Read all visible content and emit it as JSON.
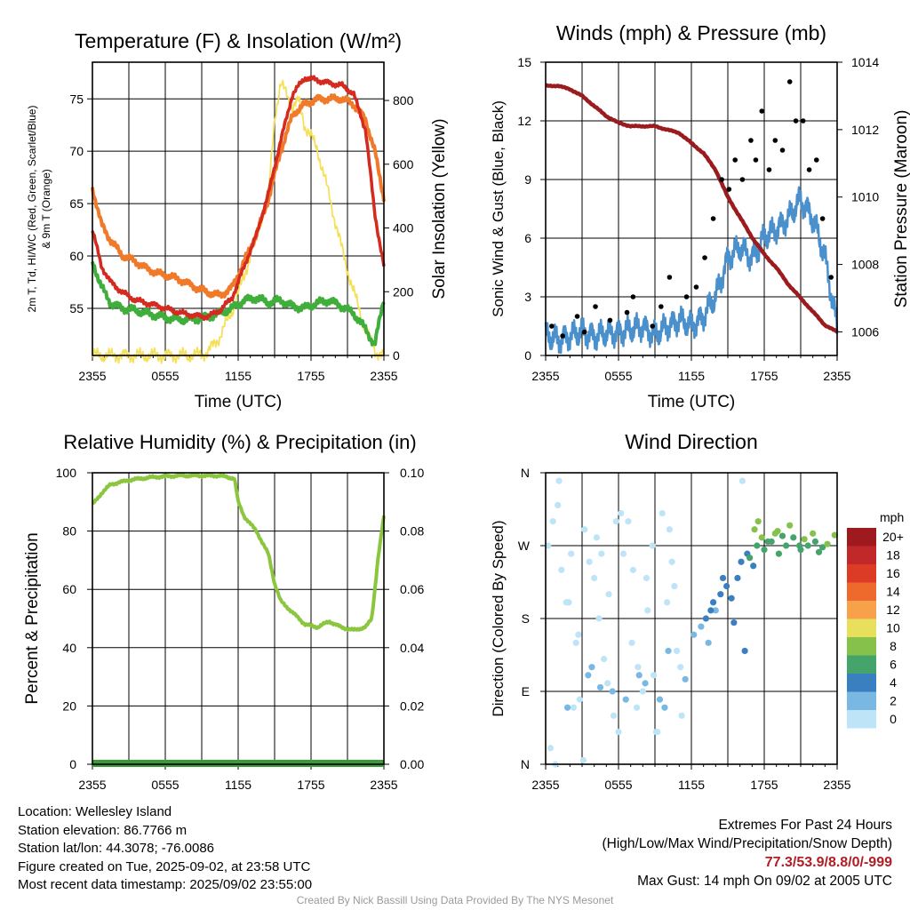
{
  "chart_data": [
    {
      "type": "line",
      "title": "Temperature (F) & Insolation (W/m²)",
      "xlabel": "Time (UTC)",
      "ylabel_lines": [
        "2m T, Td, HI/WC (Red, Green, Scarlet/Blue)",
        "& 9m T (Orange)"
      ],
      "ylabel_right": "Solar Insolation (Yellow)",
      "x_ticks": [
        "2355",
        "0555",
        "1155",
        "1755",
        "2355"
      ],
      "ylim": [
        50.5,
        78.5
      ],
      "y_ticks": [
        55,
        60,
        65,
        70,
        75
      ],
      "ylim_right": [
        0,
        920
      ],
      "y_ticks_right": [
        0,
        200,
        400,
        600,
        800
      ],
      "series": [
        {
          "color": "#d42a20",
          "axis": "left",
          "x": [
            0,
            0.75,
            1.5,
            2.5,
            3.5,
            4.5,
            5.5,
            6.5,
            7.5,
            8.5,
            9.5,
            10.5,
            11.5,
            12.5,
            13.5,
            14.5,
            15.5,
            16.5,
            17.5,
            18.5,
            19.5,
            20.5,
            21.5,
            22.5,
            23.25,
            24
          ],
          "values": [
            62.5,
            59,
            57.5,
            56.5,
            55.8,
            55.5,
            55.2,
            54.8,
            54.5,
            54.3,
            54.2,
            54.8,
            56,
            59,
            62,
            66,
            71,
            75.5,
            77,
            76.8,
            76.5,
            76.3,
            75.5,
            72,
            64,
            59
          ]
        },
        {
          "color": "#b01e24",
          "axis": "left",
          "x": [
            0,
            0.75,
            1.5,
            2.5,
            3.5,
            4.5,
            5.5,
            6.5,
            7.5,
            8.5,
            9.5,
            10.5,
            11.5,
            12.5,
            13.5,
            14.5,
            15.5,
            16.5,
            17.5,
            18.5,
            19.5,
            20.5,
            21.5,
            22.5,
            23.25,
            24
          ],
          "values": [
            62.5,
            59,
            57.5,
            56.5,
            55.8,
            55.5,
            55.2,
            54.8,
            54.5,
            54.3,
            54.2,
            54.8,
            56,
            59,
            62,
            66,
            71,
            75.5,
            77,
            76.8,
            76.5,
            76.3,
            75.5,
            72,
            64,
            59
          ]
        },
        {
          "color": "#f07a2a",
          "axis": "left",
          "x": [
            0,
            0.75,
            1.5,
            2.5,
            3.5,
            4.5,
            5.5,
            6.5,
            7.5,
            8.5,
            9.5,
            10.5,
            11.5,
            12.5,
            13.5,
            14.5,
            15.5,
            16.5,
            17.5,
            18.5,
            19.5,
            20.5,
            21.5,
            22.5,
            23.25,
            24
          ],
          "values": [
            66.5,
            63,
            61.5,
            60,
            59.5,
            58.8,
            58.3,
            58,
            57.6,
            57,
            56.5,
            56.2,
            57,
            59.5,
            62,
            65.5,
            70,
            73.5,
            74.5,
            75,
            75,
            75,
            74.5,
            73,
            70,
            65.5
          ]
        },
        {
          "color": "#3fae3a",
          "axis": "left",
          "x": [
            0,
            0.75,
            1.5,
            2.5,
            3.5,
            4.5,
            5.5,
            6.5,
            7.5,
            8.5,
            9.5,
            10.5,
            11.5,
            12.5,
            13.5,
            14.5,
            15.5,
            16.5,
            17.5,
            18.5,
            19.5,
            20.5,
            21.5,
            22.5,
            23.25,
            24
          ],
          "values": [
            59.5,
            57,
            55.5,
            55,
            54.8,
            54.5,
            54.3,
            54,
            53.9,
            54,
            54.2,
            54.5,
            55,
            55.8,
            56,
            55.5,
            55.8,
            55.2,
            55,
            55.5,
            55.8,
            55.2,
            54.5,
            53,
            51.5,
            56
          ]
        },
        {
          "color": "#f5e05a",
          "axis": "right",
          "x": [
            0,
            8.5,
            9.5,
            10.5,
            11.5,
            12.5,
            13.5,
            14.5,
            15,
            15.5,
            16,
            16.5,
            17,
            17.5,
            18.5,
            19.5,
            20.5,
            21.5,
            22.5,
            23.25,
            24
          ],
          "values": [
            0,
            0,
            10,
            60,
            140,
            250,
            380,
            500,
            750,
            850,
            820,
            780,
            800,
            720,
            650,
            500,
            340,
            200,
            80,
            15,
            0
          ]
        }
      ]
    },
    {
      "type": "line",
      "title": "Winds (mph) & Pressure (mb)",
      "xlabel": "Time (UTC)",
      "ylabel": "Sonic Wind & Gust (Blue, Black)",
      "ylabel_right": "Station Pressure (Maroon)",
      "x_ticks": [
        "2355",
        "0555",
        "1155",
        "1755",
        "2355"
      ],
      "ylim": [
        0,
        15
      ],
      "y_ticks": [
        0,
        3,
        6,
        9,
        12,
        15
      ],
      "ylim_right": [
        1005.3,
        1014
      ],
      "y_ticks_right": [
        1006,
        1008,
        1010,
        1012,
        1014
      ],
      "series": [
        {
          "color": "#4a90cc",
          "axis": "left",
          "x": [
            0,
            1,
            2,
            3,
            4,
            5,
            6,
            7,
            8,
            9,
            10,
            11,
            12,
            13,
            14,
            15,
            16,
            17,
            18,
            19,
            20,
            21,
            22,
            23,
            24
          ],
          "values": [
            1,
            0.8,
            1,
            1.2,
            1,
            1.1,
            1.2,
            1.3,
            1.5,
            1,
            1.5,
            1.8,
            1.5,
            2,
            3,
            5,
            5.5,
            5,
            6,
            6.5,
            7,
            8,
            7,
            5,
            1.5
          ]
        },
        {
          "color": "#9b1c1f",
          "axis": "right",
          "x": [
            0,
            1,
            2,
            3,
            4,
            5,
            6,
            7,
            8,
            9,
            10,
            11,
            12,
            13,
            14,
            15,
            16,
            17,
            18,
            19,
            20,
            21,
            22,
            23,
            24
          ],
          "values": [
            1013.3,
            1013.3,
            1013.2,
            1013,
            1012.7,
            1012.4,
            1012.2,
            1012.1,
            1012.1,
            1012.1,
            1012,
            1011.9,
            1011.6,
            1011.3,
            1010.8,
            1010,
            1009.4,
            1008.8,
            1008.3,
            1007.9,
            1007.4,
            1007,
            1006.6,
            1006.2,
            1006
          ]
        }
      ],
      "gust_points": {
        "color": "#000000",
        "x": [
          0.5,
          1.4,
          2.6,
          3.2,
          4.1,
          5.3,
          6.7,
          7.2,
          8.8,
          9.5,
          10.2,
          11.6,
          12.4,
          13.1,
          13.8,
          14.5,
          15.1,
          15.6,
          16.2,
          16.9,
          17.3,
          17.8,
          18.4,
          18.9,
          19.5,
          20.1,
          20.6,
          21.2,
          21.7,
          22.3,
          22.8,
          23.5
        ],
        "values": [
          1.5,
          1,
          2,
          1.2,
          2.5,
          1.8,
          2.2,
          3,
          1.5,
          2.5,
          4,
          3,
          3.5,
          5,
          7,
          9,
          8.5,
          10,
          9,
          11,
          10,
          12.5,
          9.5,
          11,
          10.5,
          14,
          12,
          12,
          9.5,
          10,
          7,
          4
        ]
      }
    },
    {
      "type": "line",
      "title": "Relative Humidity (%) & Precipitation (in)",
      "ylabel": "Percent & Precipitation",
      "x_ticks": [
        "2355",
        "0555",
        "1155",
        "1755",
        "2355"
      ],
      "ylim": [
        0,
        100
      ],
      "y_ticks": [
        0,
        20,
        40,
        60,
        80,
        100
      ],
      "ylim_right": [
        0,
        0.1
      ],
      "y_ticks_right": [
        "0.00",
        "0.02",
        "0.04",
        "0.06",
        "0.08",
        "0.10"
      ],
      "series": [
        {
          "color": "#8cc63f",
          "axis": "left",
          "x": [
            0,
            0.75,
            1.5,
            3,
            5,
            7,
            9,
            10.5,
            11.7,
            12,
            12.5,
            13.5,
            14.5,
            15,
            15.5,
            16.5,
            17.5,
            18.5,
            19.5,
            20.5,
            21.5,
            22.5,
            23,
            23.5,
            24
          ],
          "values": [
            89,
            93,
            96,
            97.5,
            98.5,
            99,
            99,
            99,
            98,
            90,
            85,
            80,
            72,
            62,
            56,
            52,
            48,
            47,
            49,
            47,
            46,
            47,
            50,
            70,
            85
          ]
        },
        {
          "color": "#3a9a3a",
          "axis": "right",
          "x": [
            0,
            24
          ],
          "values": [
            0,
            0
          ]
        }
      ]
    },
    {
      "type": "scatter",
      "title": "Wind Direction",
      "ylabel": "Direction (Colored By Speed)",
      "x_ticks": [
        "2355",
        "0555",
        "1155",
        "1755",
        "2355"
      ],
      "y_ticks": [
        "N",
        "E",
        "S",
        "W",
        "N"
      ],
      "ylim": [
        0,
        360
      ],
      "legend_title": "mph",
      "legend_labels": [
        "20+",
        "18",
        "16",
        "14",
        "12",
        "10",
        "8",
        "6",
        "4",
        "2",
        "0"
      ],
      "legend_colors": [
        "#9e1a1f",
        "#c0282a",
        "#dc3b26",
        "#ee6a2c",
        "#f7a24a",
        "#e8e05c",
        "#86c14b",
        "#45a46b",
        "#3a7fbf",
        "#7ab8e4",
        "#bde4f7"
      ],
      "groups": [
        {
          "color": "#bde4f7",
          "x": [
            0.2,
            0.6,
            1,
            1.3,
            1.7,
            2.1,
            2.5,
            2.8,
            3.2,
            3.6,
            4,
            4.4,
            4.8,
            5.2,
            5.6,
            6,
            6.4,
            6.8,
            7.2,
            7.6,
            8,
            8.4,
            8.8,
            9.2,
            9.6,
            10,
            10.4,
            10.8,
            11.2,
            0.4,
            1.1,
            2.3,
            3.1,
            4.2,
            5.1,
            6.2,
            7.1,
            8.3,
            9.1,
            10.2,
            11.1,
            0.8,
            1.9,
            2.7,
            4.6,
            5.8,
            7.5,
            8.9,
            10.6,
            16.2
          ],
          "values": [
            270,
            300,
            320,
            240,
            200,
            260,
            150,
            80,
            290,
            250,
            230,
            180,
            130,
            210,
            60,
            40,
            260,
            300,
            240,
            120,
            90,
            190,
            270,
            40,
            310,
            200,
            250,
            140,
            60,
            20,
            350,
            70,
            5,
            280,
            100,
            310,
            150,
            230,
            40,
            290,
            120,
            0,
            200,
            160,
            260,
            300,
            70,
            110,
            220,
            350
          ]
        },
        {
          "color": "#7ab8e4",
          "x": [
            3.5,
            4.5,
            6.6,
            8.2,
            9.4,
            10.1,
            11.5,
            12.2,
            12.8,
            13.4,
            14,
            1.8,
            3.8,
            5.5,
            7.7,
            9.8
          ],
          "values": [
            110,
            95,
            80,
            100,
            80,
            140,
            105,
            160,
            170,
            150,
            190,
            70,
            120,
            90,
            110,
            70
          ]
        },
        {
          "color": "#3a7fbf",
          "x": [
            13.2,
            13.8,
            14.4,
            14.9,
            15.3,
            15.8,
            16.1,
            16.6,
            17.1,
            13.6,
            14.6,
            15.5,
            16.4
          ],
          "values": [
            180,
            200,
            210,
            220,
            205,
            230,
            250,
            260,
            245,
            190,
            230,
            175,
            140
          ]
        },
        {
          "color": "#45a46b",
          "x": [
            16.8,
            17.4,
            18,
            18.6,
            19.2,
            19.8,
            20.4,
            21,
            21.6,
            22.2,
            22.8,
            18.3,
            19.5,
            20.9,
            22.5
          ],
          "values": [
            255,
            270,
            265,
            275,
            260,
            270,
            280,
            265,
            270,
            275,
            268,
            275,
            282,
            270,
            262
          ]
        },
        {
          "color": "#86c14b",
          "x": [
            17.2,
            17.8,
            18.9,
            20.1,
            21.3,
            22,
            23.2,
            23.8,
            17.5,
            19.1
          ],
          "values": [
            290,
            280,
            285,
            295,
            278,
            285,
            272,
            283,
            300,
            288
          ]
        }
      ]
    }
  ],
  "footer": {
    "location": "Location: Wellesley Island",
    "elevation": "Station elevation: 86.7766 m",
    "latlon": "Station lat/lon: 44.3078; -76.0086",
    "created": "Figure created on Tue, 2025-09-02, at 23:58 UTC",
    "recent": "Most recent data timestamp: 2025/09/02 23:55:00",
    "extremes_title": "Extremes For Past 24 Hours",
    "extremes_sub": "(High/Low/Max Wind/Precipitation/Snow Depth)",
    "extremes_values": "77.3/53.9/8.8/0/-999",
    "max_gust": "Max Gust: 14 mph On 09/02 at 2005 UTC",
    "credit": "Created By Nick Bassill Using Data Provided By The NYS Mesonet"
  }
}
